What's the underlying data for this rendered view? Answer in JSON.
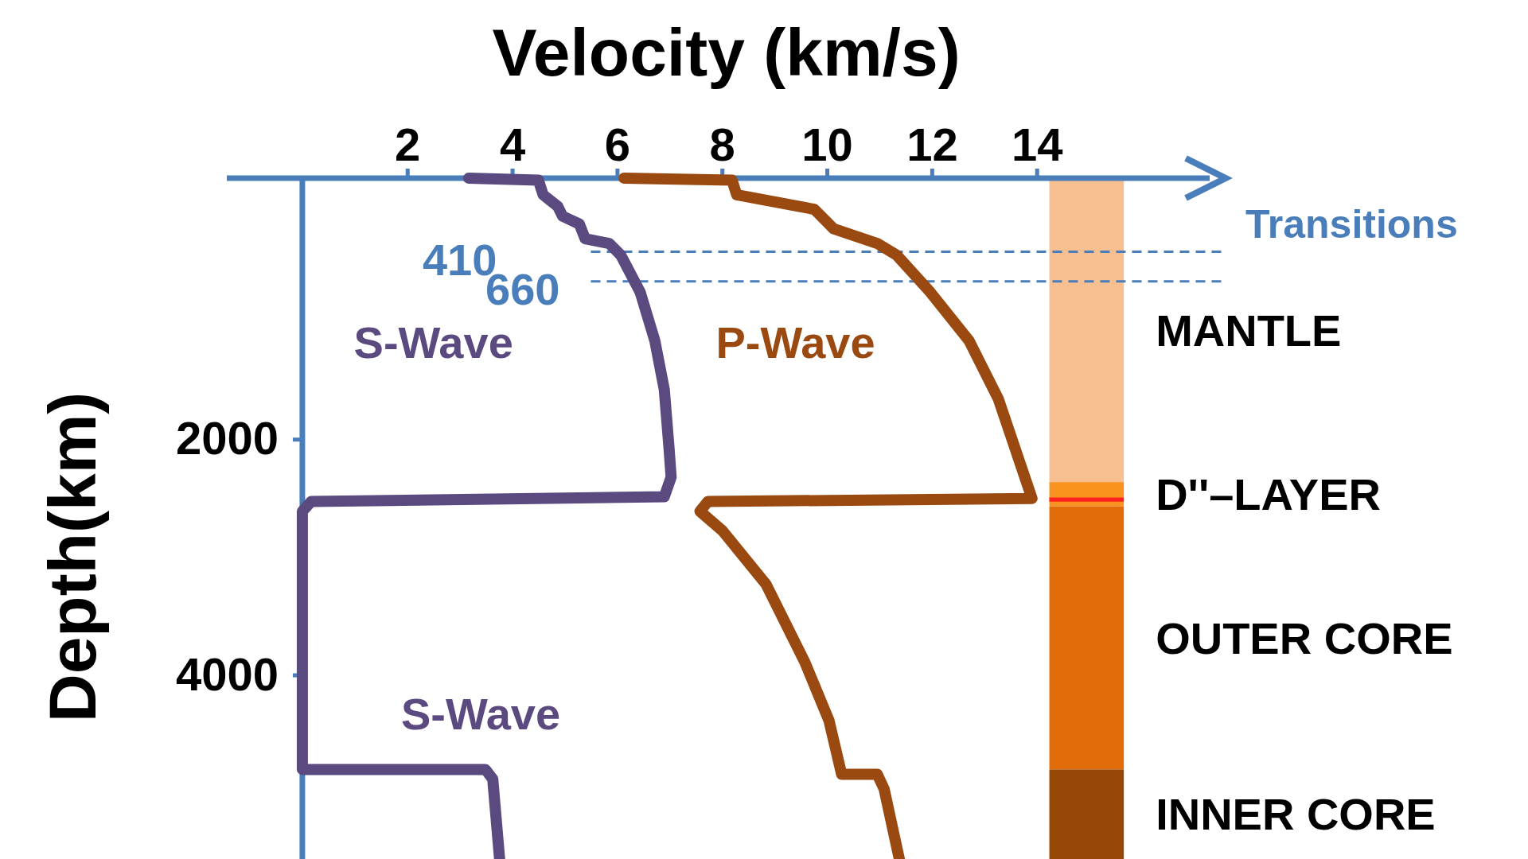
{
  "chart_data": {
    "type": "line",
    "xlabel": "Velocity (km/s)",
    "ylabel": "Depth(km)",
    "xlim": [
      -1.44,
      17.6
    ],
    "ylim": [
      5562,
      -215
    ],
    "xticks": [
      2,
      4,
      6,
      8,
      10,
      12,
      14
    ],
    "yticks": [
      2000,
      4000
    ],
    "series": [
      {
        "name": "S-Wave",
        "color": "#5b4a80",
        "x": [
          3.17,
          4.5,
          4.59,
          4.87,
          4.96,
          5.28,
          5.39,
          5.85,
          6.07,
          6.44,
          6.72,
          6.9,
          6.99,
          7.03,
          6.9,
          0.17,
          0,
          0,
          3.49,
          3.63,
          3.76
        ],
        "values": [
          -215,
          -198,
          -74,
          25,
          107,
          174,
          298,
          339,
          438,
          752,
          1165,
          1579,
          2074,
          2322,
          2488,
          2529,
          2612,
          4802,
          4802,
          4884,
          5562
        ]
      },
      {
        "name": "P-Wave",
        "color": "#9a4a10",
        "x": [
          6.13,
          8.19,
          8.28,
          9.76,
          10.13,
          10.96,
          11.33,
          11.97,
          12.71,
          13.27,
          13.91,
          7.73,
          7.58,
          8.01,
          8.84,
          9.58,
          10.04,
          10.28,
          10.96,
          11.09,
          11.38
        ],
        "values": [
          -215,
          -198,
          -74,
          49,
          215,
          339,
          438,
          752,
          1165,
          1661,
          2503,
          2529,
          2612,
          2777,
          3231,
          3893,
          4388,
          4843,
          4843,
          4967,
          5562
        ]
      }
    ],
    "bands": [
      {
        "axis": "y",
        "from": -215,
        "to": 2364,
        "label": "MANTLE",
        "color": "#f8c090"
      },
      {
        "axis": "y",
        "from": 2364,
        "to": 2570,
        "label": "D''–LAYER",
        "color": "#f7931e"
      },
      {
        "axis": "y",
        "from": 2495,
        "to": 2530,
        "color": "#ff2020"
      },
      {
        "axis": "y",
        "from": 2570,
        "to": 4802,
        "label": "OUTER CORE",
        "color": "#e36c0a"
      },
      {
        "axis": "y",
        "from": 4802,
        "to": 5562,
        "label": "INNER CORE",
        "color": "#974806"
      }
    ],
    "ref_lines": [
      {
        "axis": "y",
        "value": 410,
        "color": "#4a7ebb",
        "line_style": "dashed"
      },
      {
        "axis": "y",
        "value": 660,
        "color": "#4a7ebb",
        "line_style": "dashed"
      }
    ],
    "annotations": [
      "S-Wave",
      "Transitions",
      "410",
      "660"
    ],
    "legend": false,
    "grid": false
  }
}
